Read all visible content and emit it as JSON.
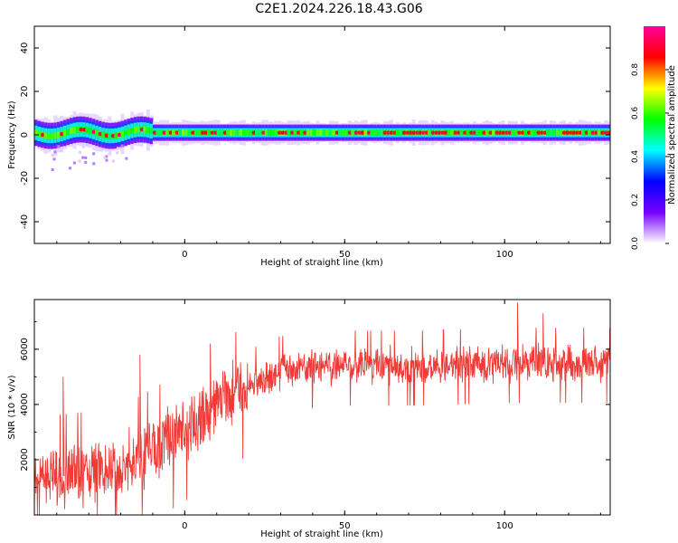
{
  "title": "C2E1.2024.226.18.43.G06",
  "chart_data": [
    {
      "type": "heatmap",
      "xlabel": "Height of straight line (km)",
      "ylabel": "Frequency (Hz)",
      "xlim": [
        -47,
        133
      ],
      "ylim": [
        -50,
        50
      ],
      "xticks": [
        0,
        50,
        100
      ],
      "yticks": [
        40,
        20,
        0,
        -20,
        -40
      ],
      "colorbar": {
        "label": "Normalized spectral amplitude",
        "range": [
          0,
          1
        ],
        "ticks": [
          "0.0",
          "0.2",
          "0.4",
          "0.6",
          "0.8"
        ],
        "colormap": [
          "#ffffff",
          "#7700ff",
          "#0000ff",
          "#00ffff",
          "#00ff00",
          "#ffff00",
          "#ff0000",
          "#ff0099"
        ]
      },
      "band": {
        "center_hz": 1,
        "halfwidth_core_hz": 2,
        "halfwidth_outer_hz": 5
      },
      "scatter_region": {
        "x_from": -42,
        "x_to": -18,
        "y_from": -16,
        "y_to": -4
      }
    },
    {
      "type": "line",
      "xlabel": "Height of straight line (km)",
      "ylabel": "SNR (10 * v/v)",
      "xlim": [
        -47,
        133
      ],
      "ylim": [
        0,
        7800
      ],
      "xticks": [
        0,
        50,
        100
      ],
      "yticks": [
        2000,
        4000,
        6000
      ],
      "color": "#ef3a36",
      "trend": [
        {
          "x": -47,
          "y": 1300
        },
        {
          "x": -30,
          "y": 1500
        },
        {
          "x": -15,
          "y": 2000
        },
        {
          "x": 0,
          "y": 3000
        },
        {
          "x": 10,
          "y": 3900
        },
        {
          "x": 20,
          "y": 4700
        },
        {
          "x": 30,
          "y": 5200
        },
        {
          "x": 50,
          "y": 5400
        },
        {
          "x": 75,
          "y": 5400
        },
        {
          "x": 100,
          "y": 5500
        },
        {
          "x": 133,
          "y": 5500
        }
      ],
      "peaks": [
        {
          "x": -38,
          "y": 5000
        },
        {
          "x": -14,
          "y": 5800
        },
        {
          "x": 8,
          "y": 6200
        },
        {
          "x": 104,
          "y": 7700
        },
        {
          "x": 112,
          "y": 7300
        }
      ]
    }
  ]
}
